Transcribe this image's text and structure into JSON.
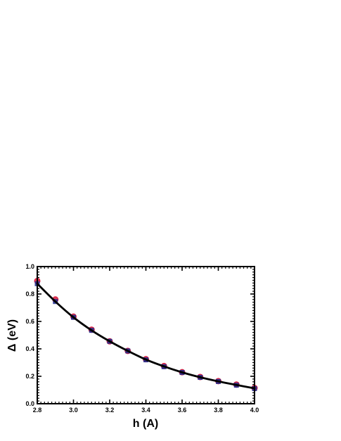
{
  "chart_data": {
    "type": "line",
    "xlabel": "h (A)",
    "ylabel": "Δ (eV)",
    "xlim": [
      2.8,
      4.0
    ],
    "ylim": [
      0.0,
      1.0
    ],
    "x_ticks": [
      "2.8",
      "3.0",
      "3.2",
      "3.4",
      "3.6",
      "3.8",
      "4.0"
    ],
    "y_ticks": [
      "0.0",
      "0.2",
      "0.4",
      "0.6",
      "0.8",
      "1.0"
    ],
    "x": [
      2.8,
      2.9,
      3.0,
      3.1,
      3.2,
      3.3,
      3.4,
      3.5,
      3.6,
      3.7,
      3.8,
      3.9,
      4.0
    ],
    "series": [
      {
        "marker": "circle",
        "color": "#d81b3c",
        "values": [
          0.895,
          0.76,
          0.635,
          0.54,
          0.455,
          0.385,
          0.325,
          0.275,
          0.23,
          0.195,
          0.165,
          0.14,
          0.115
        ]
      },
      {
        "marker": "square",
        "color": "#1b2a8c",
        "values": [
          0.875,
          0.745,
          0.63,
          0.535,
          0.455,
          0.385,
          0.32,
          0.27,
          0.228,
          0.192,
          0.162,
          0.135,
          0.11
        ]
      },
      {
        "marker": "none",
        "color": "#000000",
        "values": [
          0.875,
          0.745,
          0.63,
          0.535,
          0.455,
          0.385,
          0.322,
          0.272,
          0.229,
          0.193,
          0.163,
          0.137,
          0.112
        ]
      }
    ],
    "grid": false,
    "legend": "none"
  }
}
